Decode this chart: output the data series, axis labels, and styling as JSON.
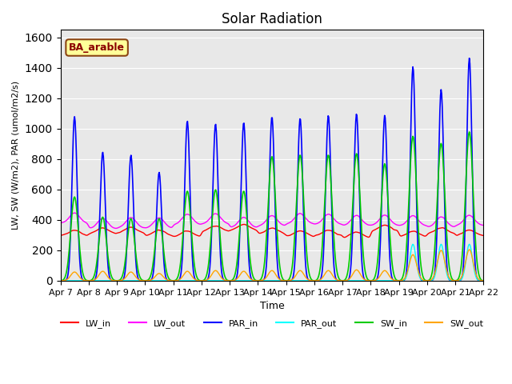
{
  "title": "Solar Radiation",
  "xlabel": "Time",
  "ylabel": "LW, SW (W/m2), PAR (umol/m2/s)",
  "xlim": [
    0,
    15
  ],
  "ylim": [
    0,
    1650
  ],
  "yticks": [
    0,
    200,
    400,
    600,
    800,
    1000,
    1200,
    1400,
    1600
  ],
  "xtick_labels": [
    "Apr 7",
    "Apr 8",
    "Apr 9",
    "Apr 10",
    "Apr 11",
    "Apr 12",
    "Apr 13",
    "Apr 14",
    "Apr 15",
    "Apr 16",
    "Apr 17",
    "Apr 18",
    "Apr 19",
    "Apr 20",
    "Apr 21",
    "Apr 22"
  ],
  "bg_color": "#e8e8e8",
  "legend_label": "BA_arable",
  "colors": {
    "LW_in": "#ff0000",
    "LW_out": "#ff00ff",
    "PAR_in": "#0000ff",
    "PAR_out": "#00ffff",
    "SW_in": "#00cc00",
    "SW_out": "#ffa500"
  },
  "n_days": 15,
  "hours_per_day": 48,
  "peak_hours": 12,
  "dt": 0.5
}
